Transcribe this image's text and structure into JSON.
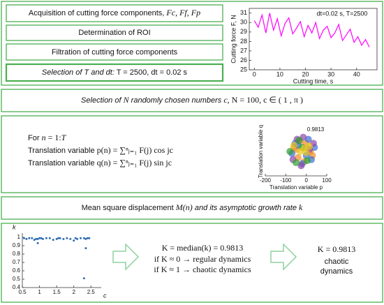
{
  "boxes": {
    "acquisition": [
      "Acquisition of cutting force components, ",
      "Fc, Ff, Fp"
    ],
    "roi": "Determination of ROI",
    "filtration": "Filtration of cutting force components",
    "selection_t": [
      "Selection of T and dt:",
      "  T = 2500, dt = 0.02 s"
    ],
    "selection_n": [
      "Selection of ",
      "N",
      " randomly chosen numbers ",
      "c",
      ",  N = 100,  c ∈ ( 1 , π )"
    ],
    "loop": {
      "header": [
        "For ",
        "n",
        " = 1:",
        "T"
      ],
      "p": [
        "Translation variable ",
        "p(n) = ∑ⁿⱼ₌₁ F(j) cos jc"
      ],
      "q": [
        "Translation variable ",
        "q(n) = ∑ⁿⱼ₌₁ F(j) sin jc"
      ]
    },
    "msd": [
      "Mean square displacement ",
      "M(n)",
      " and its asymptotic growth rate ",
      "k"
    ],
    "result": {
      "median": "K = median(k) = 0.9813",
      "regular": "if K ≈ 0 → regular dynamics",
      "chaotic": "if K ≈ 1 → chaotic dynamics"
    },
    "conclusion": {
      "value": "K = 0.9813",
      "label": [
        "chaotic",
        "dynamics"
      ]
    }
  },
  "charts": [
    {
      "type": "line",
      "annotation": "dt=0.02 s, T=2500",
      "xlabel": "Cutting time, s",
      "ylabel": "Cutting force F, N",
      "color": "#ff00ff",
      "x": [
        0,
        1.5,
        3,
        4.5,
        6,
        7.5,
        9,
        10.5,
        12,
        13.5,
        15,
        16.5,
        18,
        19.5,
        21,
        22.5,
        24,
        25.5,
        27,
        28.5,
        30,
        31.5,
        33,
        34.5,
        36,
        37.5,
        39,
        40.5,
        42,
        43.5,
        45
      ],
      "values": [
        30.2,
        29.5,
        30.8,
        28.9,
        31.0,
        29.2,
        30.4,
        28.6,
        29.9,
        30.5,
        28.8,
        29.4,
        30.1,
        28.5,
        29.7,
        28.9,
        30.0,
        28.3,
        29.2,
        29.6,
        28.4,
        28.9,
        29.8,
        28.1,
        28.7,
        29.3,
        27.9,
        28.5,
        27.6,
        28.2,
        27.4
      ],
      "xlim": [
        -2,
        48
      ],
      "xticks": [
        0,
        10,
        20,
        30,
        40
      ],
      "ylim": [
        25,
        31.5
      ],
      "yticks": [
        25,
        26,
        27,
        28,
        29,
        30,
        31
      ]
    },
    {
      "type": "scatter",
      "annotation": "0.9813",
      "xlabel": "Translation variable p",
      "ylabel": "Translation variable q",
      "xlim": [
        -200,
        100
      ],
      "xticks": [
        -200,
        -100,
        0,
        100
      ],
      "ylim": [
        -120,
        120
      ],
      "series": [
        {
          "color": "#f28c28",
          "x": [
            -60,
            -30,
            0,
            20,
            -40,
            -10,
            30,
            -50
          ],
          "values": [
            20,
            50,
            40,
            0,
            -30,
            -50,
            -20,
            10
          ]
        },
        {
          "color": "#3b6fd4",
          "x": [
            -70,
            -40,
            10,
            40,
            -20,
            0,
            -55,
            25
          ],
          "values": [
            -10,
            30,
            60,
            20,
            -60,
            -20,
            40,
            -40
          ]
        },
        {
          "color": "#8e44ad",
          "x": [
            -45,
            -15,
            15,
            -65,
            35,
            -25
          ],
          "values": [
            60,
            70,
            10,
            -40,
            40,
            -70
          ]
        },
        {
          "color": "#2ca02c",
          "x": [
            -80,
            -50,
            -20,
            5,
            -35
          ],
          "values": [
            0,
            -55,
            20,
            -45,
            55
          ]
        },
        {
          "color": "#e6c619",
          "x": [
            -30,
            0,
            -60,
            15,
            -10
          ],
          "values": [
            0,
            -5,
            30,
            25,
            15
          ]
        }
      ]
    },
    {
      "type": "scatter",
      "xlabel": "c",
      "ylabel": "k",
      "xlim": [
        0.5,
        2.8
      ],
      "xticks": [
        0.5,
        1,
        1.5,
        2,
        2.5
      ],
      "ylim": [
        0.4,
        1.05
      ],
      "yticks": [
        0.4,
        0.5,
        0.6,
        0.7,
        0.8,
        0.9,
        1
      ],
      "series": [
        {
          "color": "#2f6db5",
          "x": [
            0.55,
            0.62,
            0.7,
            0.78,
            0.85,
            0.9,
            0.95,
            1.0,
            1.05,
            1.1,
            1.2,
            1.3,
            1.4,
            1.5,
            1.55,
            1.6,
            1.7,
            1.8,
            1.9,
            2.0,
            2.05,
            2.1,
            2.2,
            2.3,
            2.35,
            2.4,
            2.45,
            2.35,
            0.95,
            2.3
          ],
          "values": [
            0.99,
            0.98,
            0.99,
            0.99,
            0.97,
            0.98,
            0.98,
            0.99,
            0.99,
            0.98,
            0.99,
            0.99,
            0.97,
            0.98,
            0.99,
            0.99,
            0.98,
            0.99,
            0.98,
            0.96,
            0.99,
            0.98,
            0.99,
            0.99,
            0.98,
            0.99,
            0.99,
            0.87,
            0.93,
            0.51
          ]
        }
      ]
    }
  ]
}
